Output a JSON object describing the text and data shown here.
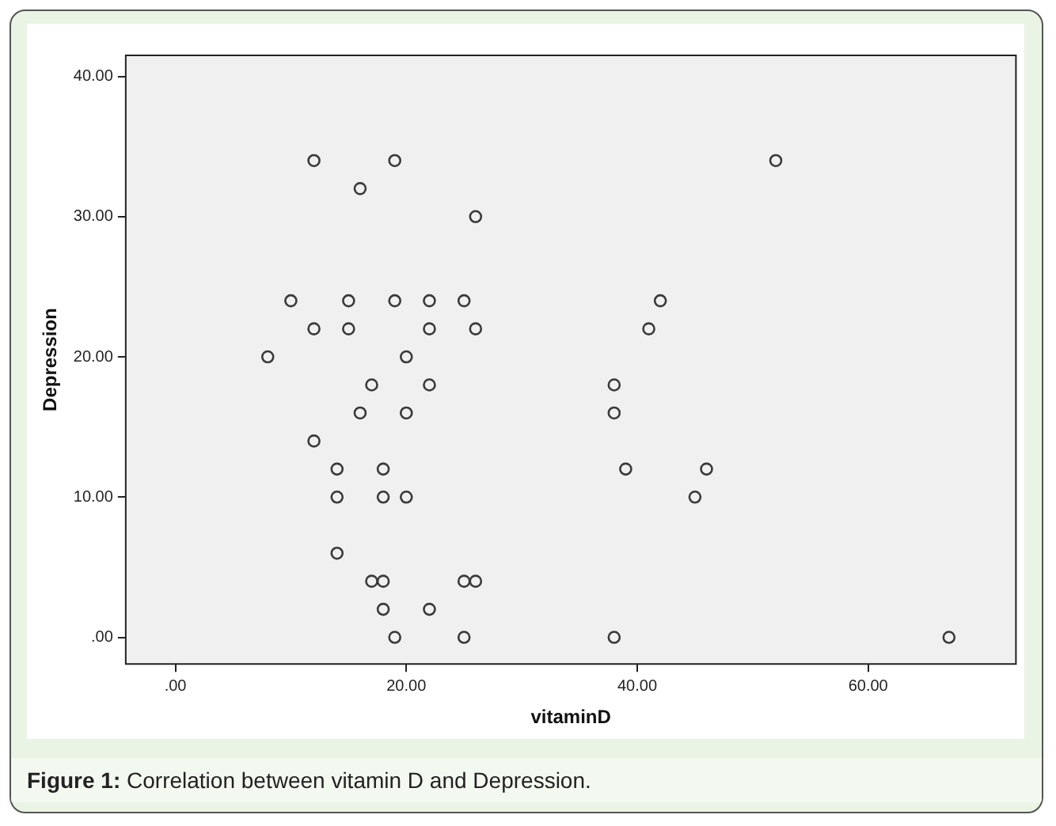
{
  "chart_data": {
    "type": "scatter",
    "xlabel": "vitaminD",
    "ylabel": "Depression",
    "annotations": [
      "Figure 1: Correlation between vitamin D and Depression."
    ],
    "series": [
      {
        "color": "#3a3a3a",
        "x": [
          12,
          19,
          16,
          26,
          52,
          10,
          15,
          19,
          22,
          25,
          42,
          12,
          15,
          22,
          26,
          41,
          8,
          20,
          17,
          22,
          38,
          16,
          20,
          38,
          12,
          14,
          18,
          39,
          46,
          14,
          18,
          20,
          45,
          14,
          17,
          18,
          25,
          26,
          18,
          22,
          19,
          25,
          38,
          67
        ],
        "values": [
          34,
          34,
          32,
          30,
          34,
          24,
          24,
          24,
          24,
          24,
          24,
          22,
          22,
          22,
          22,
          22,
          20,
          20,
          18,
          18,
          18,
          16,
          16,
          16,
          14,
          12,
          12,
          12,
          12,
          10,
          10,
          10,
          10,
          6,
          4,
          4,
          4,
          4,
          2,
          2,
          0,
          0,
          0,
          0
        ]
      }
    ],
    "xlim": [
      -4.3,
      72.8
    ],
    "ylim": [
      -1.9,
      41.5
    ],
    "xticks": [
      {
        "value": 0,
        "label": ".00"
      },
      {
        "value": 20,
        "label": "20.00"
      },
      {
        "value": 40,
        "label": "40.00"
      },
      {
        "value": 60,
        "label": "60.00"
      }
    ],
    "yticks": [
      {
        "value": 0,
        "label": ".00"
      },
      {
        "value": 10,
        "label": "10.00"
      },
      {
        "value": 20,
        "label": "20.00"
      },
      {
        "value": 30,
        "label": "30.00"
      },
      {
        "value": 40,
        "label": "40.00"
      }
    ],
    "legend": false,
    "marker": "circle"
  }
}
